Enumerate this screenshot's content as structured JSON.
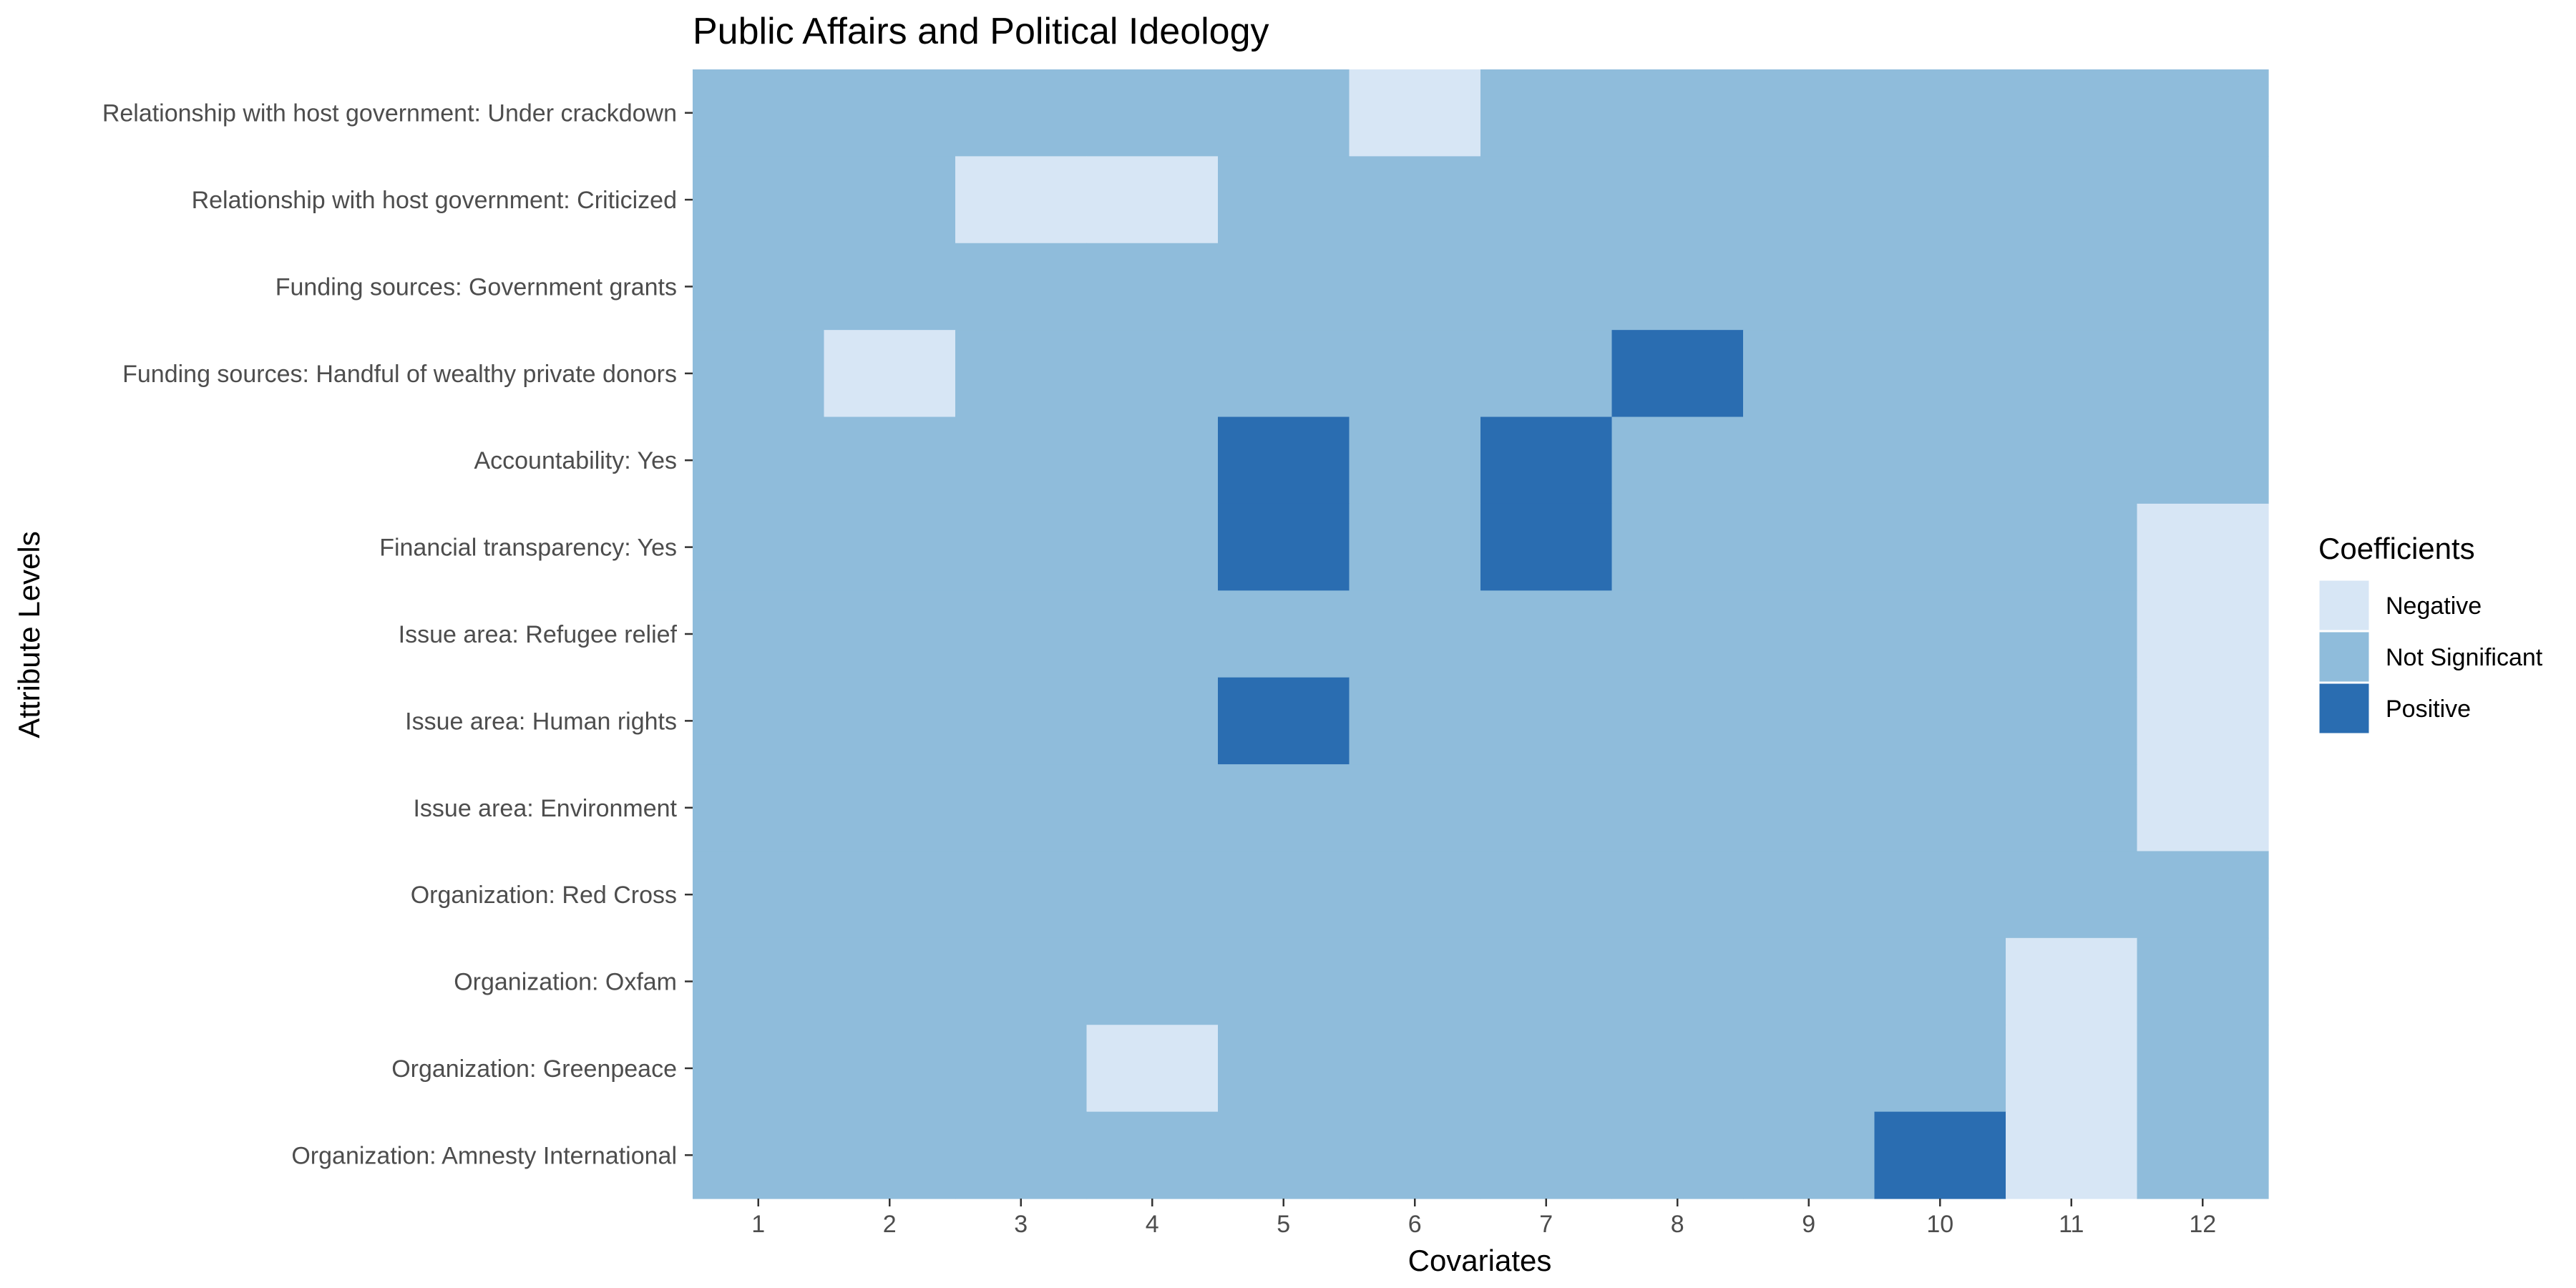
{
  "chart_data": {
    "type": "heatmap",
    "title": "Public Affairs and Political Ideology",
    "xlabel": "Covariates",
    "ylabel": "Attribute Levels",
    "x_categories": [
      "1",
      "2",
      "3",
      "4",
      "5",
      "6",
      "7",
      "8",
      "9",
      "10",
      "11",
      "12"
    ],
    "y_categories": [
      "Relationship with host government: Under crackdown",
      "Relationship with host government: Criticized",
      "Funding sources: Government grants",
      "Funding sources: Handful of wealthy private donors",
      "Accountability: Yes",
      "Financial transparency: Yes",
      "Issue area: Refugee relief",
      "Issue area: Human rights",
      "Issue area: Environment",
      "Organization: Red Cross",
      "Organization: Oxfam",
      "Organization: Greenpeace",
      "Organization: Amnesty International"
    ],
    "values": [
      [
        "Not Significant",
        "Not Significant",
        "Not Significant",
        "Not Significant",
        "Not Significant",
        "Negative",
        "Not Significant",
        "Not Significant",
        "Not Significant",
        "Not Significant",
        "Not Significant",
        "Not Significant"
      ],
      [
        "Not Significant",
        "Not Significant",
        "Negative",
        "Negative",
        "Not Significant",
        "Not Significant",
        "Not Significant",
        "Not Significant",
        "Not Significant",
        "Not Significant",
        "Not Significant",
        "Not Significant"
      ],
      [
        "Not Significant",
        "Not Significant",
        "Not Significant",
        "Not Significant",
        "Not Significant",
        "Not Significant",
        "Not Significant",
        "Not Significant",
        "Not Significant",
        "Not Significant",
        "Not Significant",
        "Not Significant"
      ],
      [
        "Not Significant",
        "Negative",
        "Not Significant",
        "Not Significant",
        "Not Significant",
        "Not Significant",
        "Not Significant",
        "Positive",
        "Not Significant",
        "Not Significant",
        "Not Significant",
        "Not Significant"
      ],
      [
        "Not Significant",
        "Not Significant",
        "Not Significant",
        "Not Significant",
        "Positive",
        "Not Significant",
        "Positive",
        "Not Significant",
        "Not Significant",
        "Not Significant",
        "Not Significant",
        "Not Significant"
      ],
      [
        "Not Significant",
        "Not Significant",
        "Not Significant",
        "Not Significant",
        "Positive",
        "Not Significant",
        "Positive",
        "Not Significant",
        "Not Significant",
        "Not Significant",
        "Not Significant",
        "Negative"
      ],
      [
        "Not Significant",
        "Not Significant",
        "Not Significant",
        "Not Significant",
        "Not Significant",
        "Not Significant",
        "Not Significant",
        "Not Significant",
        "Not Significant",
        "Not Significant",
        "Not Significant",
        "Negative"
      ],
      [
        "Not Significant",
        "Not Significant",
        "Not Significant",
        "Not Significant",
        "Positive",
        "Not Significant",
        "Not Significant",
        "Not Significant",
        "Not Significant",
        "Not Significant",
        "Not Significant",
        "Negative"
      ],
      [
        "Not Significant",
        "Not Significant",
        "Not Significant",
        "Not Significant",
        "Not Significant",
        "Not Significant",
        "Not Significant",
        "Not Significant",
        "Not Significant",
        "Not Significant",
        "Not Significant",
        "Negative"
      ],
      [
        "Not Significant",
        "Not Significant",
        "Not Significant",
        "Not Significant",
        "Not Significant",
        "Not Significant",
        "Not Significant",
        "Not Significant",
        "Not Significant",
        "Not Significant",
        "Not Significant",
        "Not Significant"
      ],
      [
        "Not Significant",
        "Not Significant",
        "Not Significant",
        "Not Significant",
        "Not Significant",
        "Not Significant",
        "Not Significant",
        "Not Significant",
        "Not Significant",
        "Not Significant",
        "Negative",
        "Not Significant"
      ],
      [
        "Not Significant",
        "Not Significant",
        "Not Significant",
        "Negative",
        "Not Significant",
        "Not Significant",
        "Not Significant",
        "Not Significant",
        "Not Significant",
        "Not Significant",
        "Negative",
        "Not Significant"
      ],
      [
        "Not Significant",
        "Not Significant",
        "Not Significant",
        "Not Significant",
        "Not Significant",
        "Not Significant",
        "Not Significant",
        "Not Significant",
        "Not Significant",
        "Positive",
        "Negative",
        "Not Significant"
      ]
    ],
    "legend": {
      "title": "Coefficients",
      "position": "right",
      "entries": [
        {
          "label": "Negative",
          "color": "#d7e6f5"
        },
        {
          "label": "Not Significant",
          "color": "#8fbcdb"
        },
        {
          "label": "Positive",
          "color": "#2a6db1"
        }
      ]
    },
    "grid": false
  }
}
